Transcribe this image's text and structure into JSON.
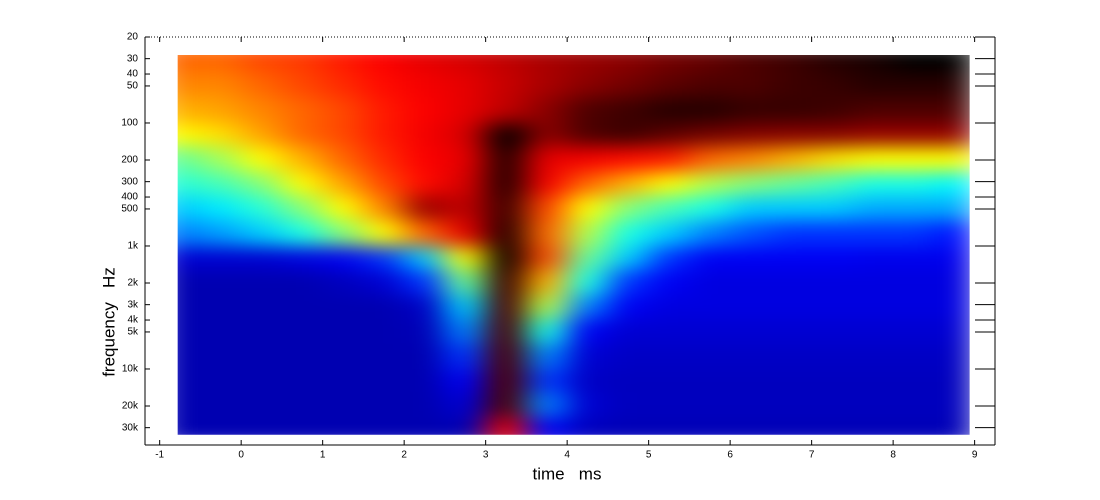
{
  "chart_data": {
    "type": "heatmap",
    "xlabel": "time   ms",
    "ylabel": "frequency   Hz",
    "xlim": [
      -1.18,
      9.25
    ],
    "xticks": [
      -1,
      0,
      1,
      2,
      3,
      4,
      5,
      6,
      7,
      8,
      9
    ],
    "ylim": [
      20,
      41500
    ],
    "log_y": true,
    "yticks": [
      20,
      30,
      40,
      50,
      100,
      200,
      300,
      400,
      500,
      {
        "value": 1000,
        "label": "1k"
      },
      {
        "value": 2000,
        "label": "2k"
      },
      {
        "value": 3000,
        "label": "3k"
      },
      {
        "value": 4000,
        "label": "4k"
      },
      {
        "value": 5000,
        "label": "5k"
      },
      {
        "value": 10000,
        "label": "10k"
      },
      {
        "value": 20000,
        "label": "20k"
      },
      {
        "value": 30000,
        "label": "30k"
      }
    ],
    "colormap": [
      "#00008f",
      "#0000ff",
      "#00ffff",
      "#ffff00",
      "#ff0000",
      "#800000",
      "#000000"
    ],
    "x": [
      -0.75,
      -0.25,
      0.25,
      0.75,
      1.25,
      1.75,
      2.25,
      2.75,
      3.25,
      3.75,
      4.25,
      4.75,
      5.25,
      5.75,
      6.25,
      6.75,
      7.25,
      7.75,
      8.25,
      8.75
    ],
    "y": [
      30,
      50,
      80,
      130,
      200,
      320,
      500,
      800,
      1300,
      2000,
      3200,
      5000,
      8000,
      13000,
      20000,
      32000
    ],
    "z": [
      [
        0.6,
        0.6,
        0.62,
        0.63,
        0.65,
        0.67,
        0.7,
        0.72,
        0.75,
        0.78,
        0.8,
        0.82,
        0.85,
        0.87,
        0.9,
        0.92,
        0.95,
        0.97,
        1,
        1
      ],
      [
        0.58,
        0.58,
        0.6,
        0.62,
        0.64,
        0.66,
        0.68,
        0.7,
        0.74,
        0.78,
        0.82,
        0.85,
        0.88,
        0.9,
        0.9,
        0.92,
        0.93,
        0.95,
        0.95,
        0.95
      ],
      [
        0.55,
        0.56,
        0.58,
        0.6,
        0.62,
        0.65,
        0.67,
        0.7,
        0.75,
        0.82,
        0.9,
        0.92,
        0.95,
        0.95,
        0.93,
        0.93,
        0.92,
        0.9,
        0.9,
        0.9
      ],
      [
        0.5,
        0.52,
        0.56,
        0.6,
        0.62,
        0.65,
        0.68,
        0.72,
        1,
        0.82,
        0.9,
        0.92,
        0.88,
        0.85,
        0.83,
        0.82,
        0.82,
        0.8,
        0.8,
        0.8
      ],
      [
        0.4,
        0.44,
        0.5,
        0.55,
        0.6,
        0.64,
        0.67,
        0.7,
        0.95,
        0.7,
        0.68,
        0.66,
        0.65,
        0.6,
        0.58,
        0.55,
        0.52,
        0.5,
        0.5,
        0.5
      ],
      [
        0.36,
        0.38,
        0.42,
        0.5,
        0.56,
        0.62,
        0.66,
        0.72,
        0.95,
        0.68,
        0.6,
        0.55,
        0.5,
        0.45,
        0.42,
        0.4,
        0.38,
        0.35,
        0.35,
        0.33
      ],
      [
        0.3,
        0.32,
        0.36,
        0.42,
        0.5,
        0.58,
        0.8,
        0.75,
        0.92,
        0.62,
        0.5,
        0.42,
        0.38,
        0.35,
        0.3,
        0.3,
        0.3,
        0.28,
        0.28,
        0.28
      ],
      [
        0.25,
        0.27,
        0.3,
        0.35,
        0.42,
        0.5,
        0.6,
        0.7,
        0.95,
        0.6,
        0.45,
        0.35,
        0.3,
        0.25,
        0.22,
        0.2,
        0.2,
        0.2,
        0.2,
        0.18
      ],
      [
        0.1,
        0.1,
        0.1,
        0.12,
        0.15,
        0.2,
        0.3,
        0.5,
        0.98,
        0.62,
        0.4,
        0.3,
        0.2,
        0.15,
        0.15,
        0.15,
        0.15,
        0.14,
        0.14,
        0.14
      ],
      [
        0.05,
        0.05,
        0.05,
        0.05,
        0.07,
        0.1,
        0.2,
        0.4,
        0.92,
        0.55,
        0.35,
        0.2,
        0.15,
        0.12,
        0.12,
        0.12,
        0.12,
        0.12,
        0.12,
        0.12
      ],
      [
        0.05,
        0.05,
        0.05,
        0.05,
        0.05,
        0.05,
        0.08,
        0.3,
        0.9,
        0.45,
        0.25,
        0.15,
        0.12,
        0.12,
        0.12,
        0.12,
        0.12,
        0.12,
        0.12,
        0.12
      ],
      [
        0.05,
        0.05,
        0.05,
        0.05,
        0.05,
        0.05,
        0.06,
        0.25,
        0.9,
        0.35,
        0.15,
        0.1,
        0.1,
        0.1,
        0.1,
        0.1,
        0.1,
        0.1,
        0.1,
        0.1
      ],
      [
        0.05,
        0.05,
        0.05,
        0.05,
        0.05,
        0.05,
        0.05,
        0.2,
        0.9,
        0.25,
        0.1,
        0.08,
        0.08,
        0.08,
        0.08,
        0.08,
        0.08,
        0.08,
        0.08,
        0.08
      ],
      [
        0.05,
        0.05,
        0.05,
        0.05,
        0.05,
        0.05,
        0.05,
        0.15,
        0.9,
        0.2,
        0.08,
        0.07,
        0.07,
        0.07,
        0.07,
        0.07,
        0.07,
        0.07,
        0.07,
        0.07
      ],
      [
        0.05,
        0.05,
        0.05,
        0.05,
        0.05,
        0.05,
        0.05,
        0.1,
        0.9,
        0.25,
        0.1,
        0.07,
        0.07,
        0.07,
        0.07,
        0.07,
        0.07,
        0.07,
        0.07,
        0.07
      ],
      [
        0.05,
        0.05,
        0.05,
        0.05,
        0.05,
        0.05,
        0.05,
        0.05,
        0.7,
        0.15,
        0.07,
        0.06,
        0.06,
        0.06,
        0.06,
        0.06,
        0.06,
        0.06,
        0.06,
        0.06
      ]
    ]
  }
}
